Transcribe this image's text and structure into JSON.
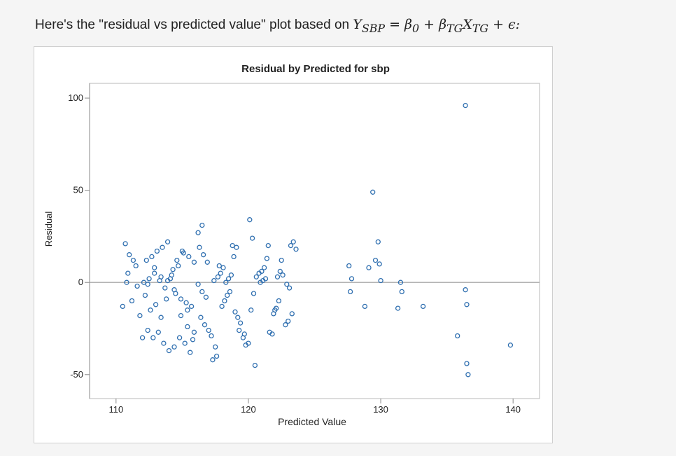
{
  "intro": {
    "prefix": "Here's the \"residual vs predicted value\" plot based on",
    "equation": "Y",
    "eq_sub_y": "SBP",
    "eq_equals": " = β",
    "eq_sub_b0": "0",
    "eq_plus": " + β",
    "eq_sub_btg": "TG",
    "eq_x": "X",
    "eq_sub_xtg": "TG",
    "eq_tail": " + ϵ:"
  },
  "colors": {
    "marker": "#2f6fb0",
    "axis": "#888888",
    "ref_line": "#a9a9a9",
    "text": "#222222"
  },
  "chart_data": {
    "type": "scatter",
    "title": "Residual by Predicted for sbp",
    "xlabel": "Predicted Value",
    "ylabel": "Residual",
    "xlim": [
      108,
      142
    ],
    "ylim": [
      -63,
      108
    ],
    "x_ticks": [
      110,
      120,
      130,
      140
    ],
    "y_ticks": [
      100,
      50,
      0,
      -50
    ],
    "reference_line": 0,
    "grid": false,
    "legend": "none",
    "x": [
      110.7,
      111.3,
      110.9,
      111.6,
      111.2,
      110.5,
      111.8,
      110.8,
      111.0,
      111.5,
      112.0,
      112.4,
      112.8,
      113.2,
      113.6,
      114.0,
      114.4,
      114.8,
      115.2,
      115.6,
      112.2,
      112.6,
      113.0,
      113.4,
      113.8,
      114.2,
      114.6,
      115.0,
      115.4,
      115.8,
      112.1,
      112.5,
      112.9,
      113.3,
      113.7,
      114.1,
      114.5,
      114.9,
      115.3,
      115.7,
      112.3,
      112.7,
      113.1,
      113.5,
      113.9,
      114.3,
      114.7,
      115.1,
      115.5,
      115.9,
      112.4,
      112.9,
      113.4,
      113.9,
      114.4,
      114.9,
      115.4,
      115.9,
      116.2,
      116.5,
      116.3,
      116.6,
      116.9,
      116.2,
      116.5,
      116.8,
      116.4,
      116.7,
      117.0,
      117.2,
      117.5,
      117.3,
      117.6,
      117.4,
      117.7,
      117.9,
      118.1,
      117.8,
      118.0,
      118.2,
      118.4,
      118.6,
      118.3,
      118.5,
      118.7,
      118.9,
      119.1,
      118.8,
      119.0,
      119.2,
      119.3,
      119.6,
      119.4,
      119.7,
      120.0,
      119.8,
      120.1,
      120.3,
      120.5,
      120.2,
      120.4,
      120.6,
      120.8,
      121.0,
      121.2,
      120.9,
      121.1,
      121.3,
      121.5,
      121.4,
      121.6,
      121.8,
      122.0,
      121.9,
      122.1,
      122.3,
      122.5,
      122.2,
      122.4,
      122.6,
      122.8,
      123.0,
      122.9,
      123.1,
      123.3,
      123.2,
      123.4,
      123.6,
      127.6,
      127.8,
      127.7,
      128.8,
      129.1,
      129.4,
      129.6,
      129.8,
      130.0,
      129.9,
      131.3,
      131.5,
      131.6,
      133.2,
      135.8,
      136.4,
      136.5,
      136.6,
      136.4,
      136.5,
      139.8
    ],
    "y": [
      21,
      12,
      5,
      -2,
      -10,
      -13,
      -18,
      0,
      15,
      9,
      -30,
      -26,
      -30,
      -27,
      -33,
      -37,
      -35,
      -30,
      -33,
      -38,
      -7,
      -15,
      -12,
      -19,
      -9,
      4,
      12,
      17,
      -24,
      -31,
      0,
      2,
      8,
      1,
      -3,
      2,
      -6,
      -9,
      -11,
      -13,
      12,
      14,
      17,
      19,
      22,
      7,
      9,
      16,
      14,
      11,
      -1,
      5,
      3,
      1,
      -4,
      -18,
      -15,
      -27,
      27,
      31,
      19,
      15,
      11,
      -1,
      -5,
      -8,
      -19,
      -23,
      -26,
      -29,
      -35,
      -42,
      -40,
      1,
      3,
      5,
      8,
      9,
      -13,
      -10,
      -7,
      -5,
      0,
      2,
      4,
      14,
      19,
      20,
      -16,
      -19,
      -26,
      -30,
      -22,
      -28,
      -33,
      -34,
      34,
      24,
      -45,
      -15,
      -6,
      3,
      5,
      6,
      8,
      0,
      1,
      2,
      20,
      13,
      -27,
      -28,
      -15,
      -17,
      -14,
      -10,
      12,
      3,
      6,
      4,
      -23,
      -21,
      -1,
      -3,
      -17,
      20,
      22,
      18,
      9,
      2,
      -5,
      -13,
      8,
      49,
      12,
      22,
      1,
      10,
      -14,
      0,
      -5,
      -13,
      -29,
      96,
      -44,
      -50,
      -4,
      -12,
      -34
    ]
  }
}
